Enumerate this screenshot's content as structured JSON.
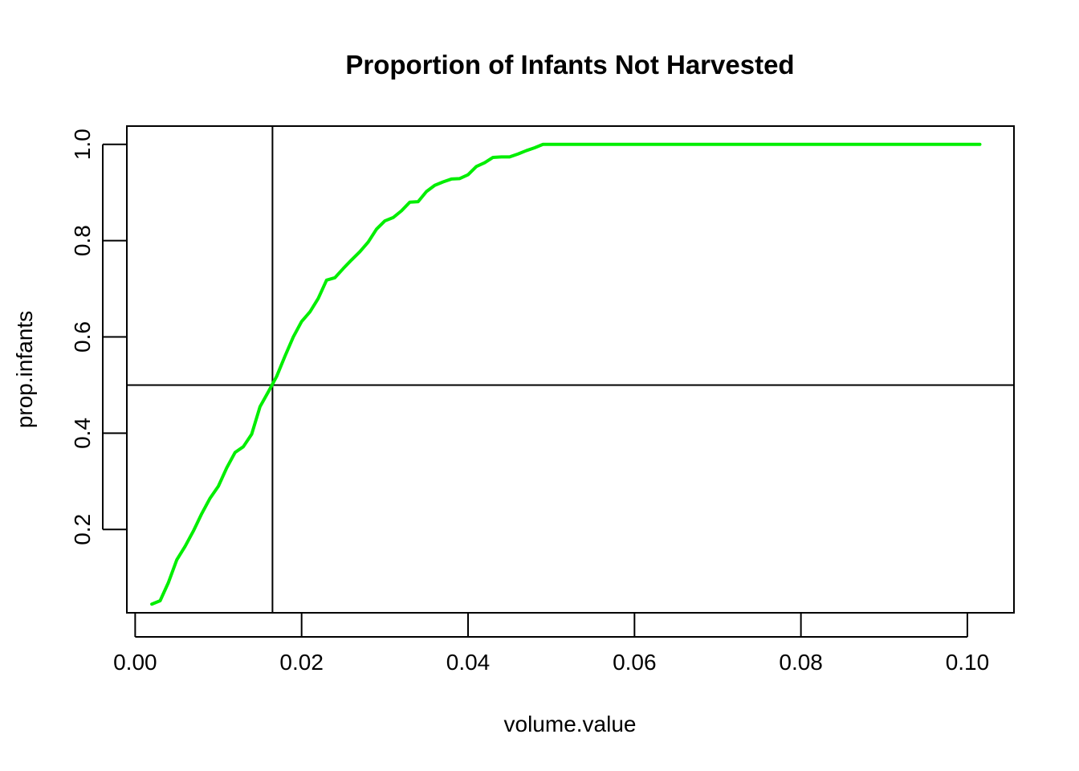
{
  "chart_data": {
    "type": "line",
    "title": "Proportion of Infants Not Harvested",
    "xlabel": "volume.value",
    "ylabel": "prop.infants",
    "xlim": [
      -0.001,
      0.1056
    ],
    "ylim": [
      0.027,
      1.038
    ],
    "x_ticks": [
      0.0,
      0.02,
      0.04,
      0.06,
      0.08,
      0.1
    ],
    "x_tick_labels": [
      "0.00",
      "0.02",
      "0.04",
      "0.06",
      "0.08",
      "0.10"
    ],
    "y_ticks": [
      0.2,
      0.4,
      0.6,
      0.8,
      1.0
    ],
    "y_tick_labels": [
      "0.2",
      "0.4",
      "0.6",
      "0.8",
      "1.0"
    ],
    "grid": false,
    "line_color": "#00EE00",
    "reference_lines": {
      "vertical_x": 0.0165,
      "horizontal_y": 0.5
    },
    "series": [
      {
        "x": [
          0.002,
          0.003,
          0.004,
          0.005,
          0.006,
          0.007,
          0.008,
          0.009,
          0.01,
          0.011,
          0.012,
          0.013,
          0.014,
          0.015,
          0.016,
          0.017,
          0.018,
          0.019,
          0.02,
          0.021,
          0.022,
          0.023,
          0.024,
          0.025,
          0.026,
          0.027,
          0.028,
          0.029,
          0.03,
          0.031,
          0.032,
          0.033,
          0.034,
          0.035,
          0.036,
          0.037,
          0.038,
          0.039,
          0.04,
          0.041,
          0.042,
          0.043,
          0.044,
          0.045,
          0.046,
          0.047,
          0.048,
          0.049,
          0.05,
          0.06,
          0.07,
          0.08,
          0.09,
          0.1015
        ],
        "y": [
          0.045,
          0.052,
          0.09,
          0.137,
          0.165,
          0.197,
          0.233,
          0.265,
          0.29,
          0.328,
          0.36,
          0.372,
          0.398,
          0.455,
          0.486,
          0.518,
          0.56,
          0.6,
          0.632,
          0.652,
          0.68,
          0.718,
          0.723,
          0.742,
          0.76,
          0.777,
          0.797,
          0.824,
          0.841,
          0.848,
          0.862,
          0.88,
          0.881,
          0.902,
          0.915,
          0.922,
          0.928,
          0.929,
          0.937,
          0.954,
          0.962,
          0.973,
          0.974,
          0.974,
          0.98,
          0.987,
          0.993,
          1.0,
          1.0,
          1.0,
          1.0,
          1.0,
          1.0,
          1.0
        ]
      }
    ]
  }
}
